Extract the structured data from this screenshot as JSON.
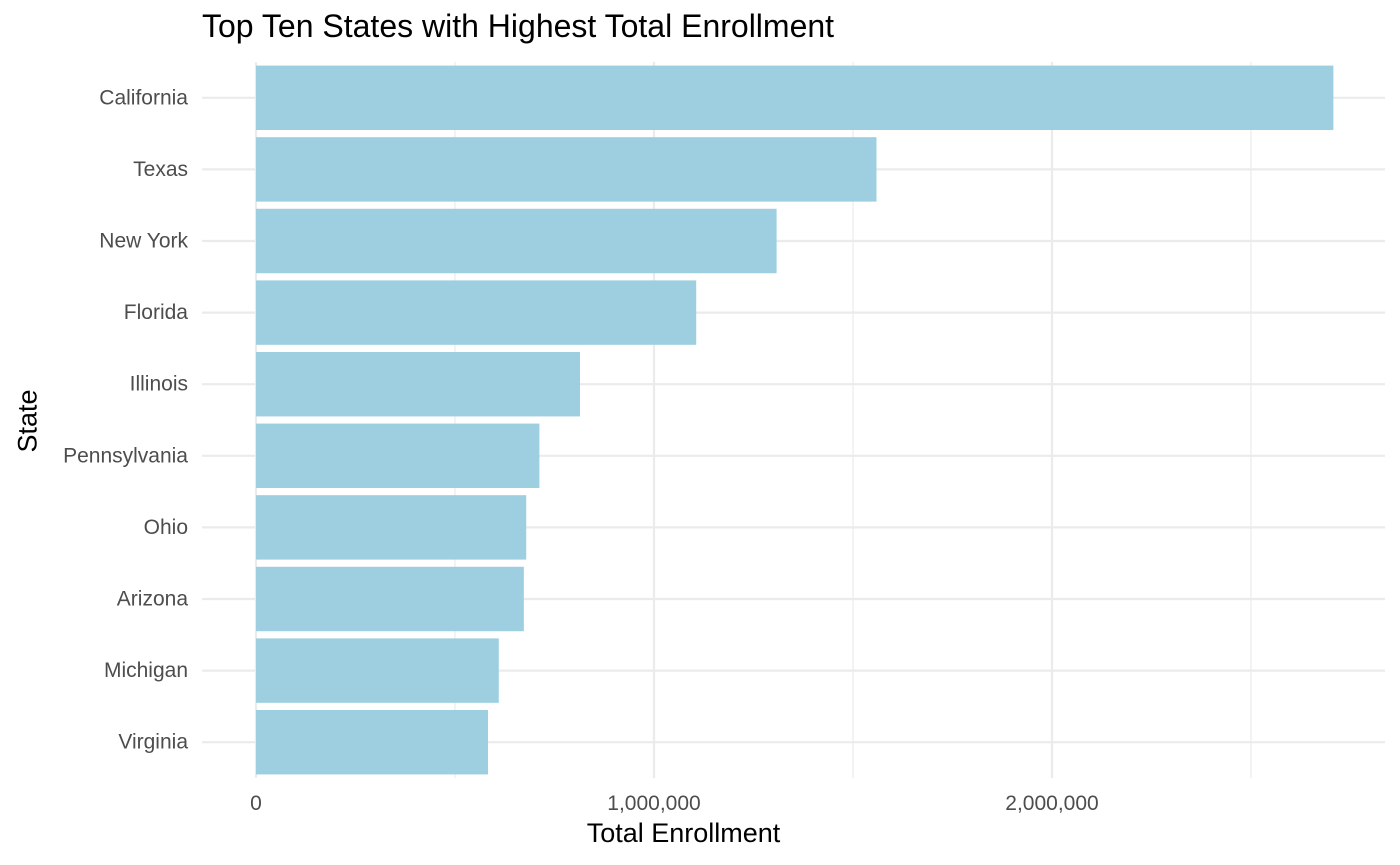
{
  "chart_data": {
    "type": "bar",
    "orientation": "horizontal",
    "title": "Top Ten States with Highest Total Enrollment",
    "xlabel": "Total Enrollment",
    "ylabel": "State",
    "categories": [
      "California",
      "Texas",
      "New York",
      "Florida",
      "Illinois",
      "Pennsylvania",
      "Ohio",
      "Arizona",
      "Michigan",
      "Virginia"
    ],
    "values": [
      2707000,
      1559000,
      1308000,
      1106000,
      814000,
      712000,
      679000,
      673000,
      610000,
      583000
    ],
    "xlim": [
      0,
      2800000
    ],
    "x_ticks": [
      0,
      1000000,
      2000000
    ],
    "x_tick_labels": [
      "0",
      "1,000,000",
      "2,000,000"
    ],
    "grid": true,
    "legend": "none",
    "bar_color": "#9ecfe0",
    "grid_color": "#ebebeb"
  }
}
